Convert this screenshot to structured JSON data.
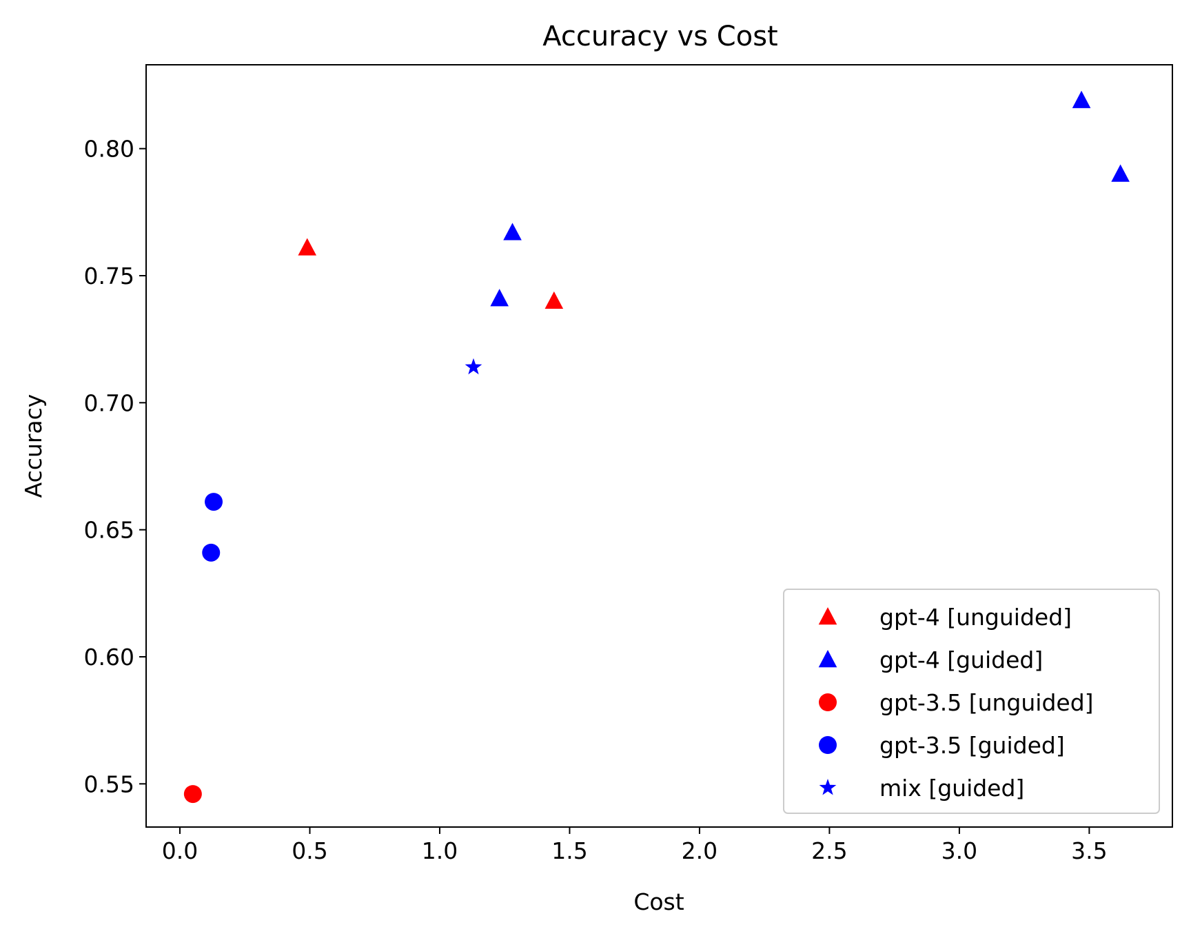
{
  "chart_data": {
    "type": "scatter",
    "title": "Accuracy vs Cost",
    "xlabel": "Cost",
    "ylabel": "Accuracy",
    "xlim": [
      -0.13,
      3.82
    ],
    "ylim": [
      0.533,
      0.833
    ],
    "xticks": [
      "0.0",
      "0.5",
      "1.0",
      "1.5",
      "2.0",
      "2.5",
      "3.0",
      "3.5"
    ],
    "yticks": [
      "0.55",
      "0.60",
      "0.65",
      "0.70",
      "0.75",
      "0.80"
    ],
    "grid": false,
    "legend_position": "lower-right",
    "series": [
      {
        "name": "gpt-4 [unguided]",
        "color": "#ff0000",
        "marker": "triangle",
        "points": [
          {
            "x": 0.49,
            "y": 0.761
          },
          {
            "x": 1.44,
            "y": 0.74
          }
        ]
      },
      {
        "name": "gpt-4 [guided]",
        "color": "#0000ff",
        "marker": "triangle",
        "points": [
          {
            "x": 1.23,
            "y": 0.741
          },
          {
            "x": 1.28,
            "y": 0.767
          },
          {
            "x": 3.47,
            "y": 0.819
          },
          {
            "x": 3.62,
            "y": 0.79
          }
        ]
      },
      {
        "name": "gpt-3.5 [unguided]",
        "color": "#ff0000",
        "marker": "circle",
        "points": [
          {
            "x": 0.05,
            "y": 0.546
          }
        ]
      },
      {
        "name": "gpt-3.5 [guided]",
        "color": "#0000ff",
        "marker": "circle",
        "points": [
          {
            "x": 0.12,
            "y": 0.641
          },
          {
            "x": 0.13,
            "y": 0.661
          }
        ]
      },
      {
        "name": "mix [guided]",
        "color": "#0000ff",
        "marker": "star",
        "points": [
          {
            "x": 1.13,
            "y": 0.714
          }
        ]
      }
    ]
  }
}
